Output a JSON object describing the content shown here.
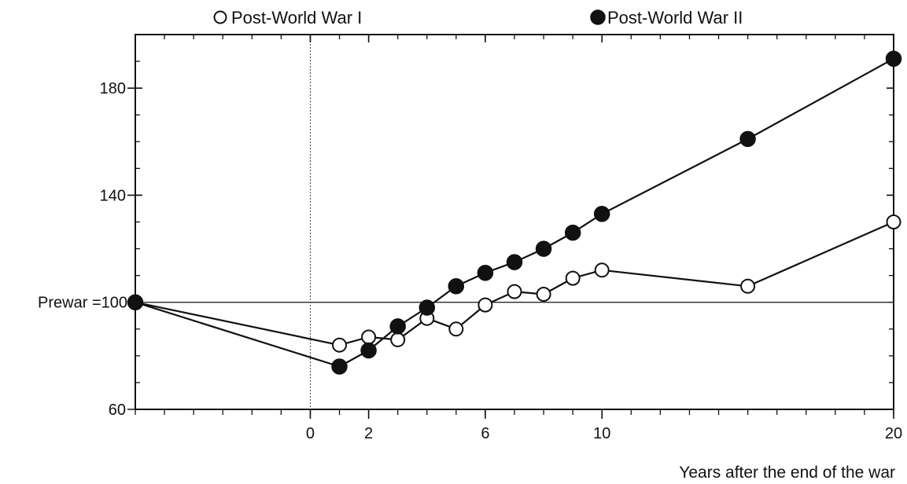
{
  "chart_data": {
    "type": "line",
    "title": "",
    "xlabel": "Years after the end of the war",
    "ylabel": "",
    "x_range": [
      -6,
      20
    ],
    "ylim": [
      60,
      200
    ],
    "x_ticks": [
      {
        "value": 0,
        "label": "0"
      },
      {
        "value": 2,
        "label": "2"
      },
      {
        "value": 6,
        "label": "6"
      },
      {
        "value": 10,
        "label": "10"
      },
      {
        "value": 20,
        "label": "20"
      }
    ],
    "y_ticks": [
      {
        "value": 60,
        "label": "60"
      },
      {
        "value": 140,
        "label": "140"
      },
      {
        "value": 180,
        "label": "180"
      }
    ],
    "reference_line": {
      "value": 100,
      "label": "Prewar =100"
    },
    "zero_line_x": 0,
    "grid": false,
    "legend_position": "top",
    "series": [
      {
        "name": "Post-World War I",
        "marker": "open-circle",
        "color": "#111111",
        "points": [
          {
            "x": -6,
            "y": 100
          },
          {
            "x": 1,
            "y": 84
          },
          {
            "x": 2,
            "y": 87
          },
          {
            "x": 3,
            "y": 86
          },
          {
            "x": 4,
            "y": 94
          },
          {
            "x": 5,
            "y": 90
          },
          {
            "x": 6,
            "y": 99
          },
          {
            "x": 7,
            "y": 104
          },
          {
            "x": 8,
            "y": 103
          },
          {
            "x": 9,
            "y": 109
          },
          {
            "x": 10,
            "y": 112
          },
          {
            "x": 15,
            "y": 106
          },
          {
            "x": 20,
            "y": 130
          }
        ]
      },
      {
        "name": "Post-World War II",
        "marker": "filled-circle",
        "color": "#111111",
        "points": [
          {
            "x": -6,
            "y": 100
          },
          {
            "x": 1,
            "y": 76
          },
          {
            "x": 2,
            "y": 82
          },
          {
            "x": 3,
            "y": 91
          },
          {
            "x": 4,
            "y": 98
          },
          {
            "x": 5,
            "y": 106
          },
          {
            "x": 6,
            "y": 111
          },
          {
            "x": 7,
            "y": 115
          },
          {
            "x": 8,
            "y": 120
          },
          {
            "x": 9,
            "y": 126
          },
          {
            "x": 10,
            "y": 133
          },
          {
            "x": 15,
            "y": 161
          },
          {
            "x": 20,
            "y": 191
          }
        ]
      }
    ]
  }
}
